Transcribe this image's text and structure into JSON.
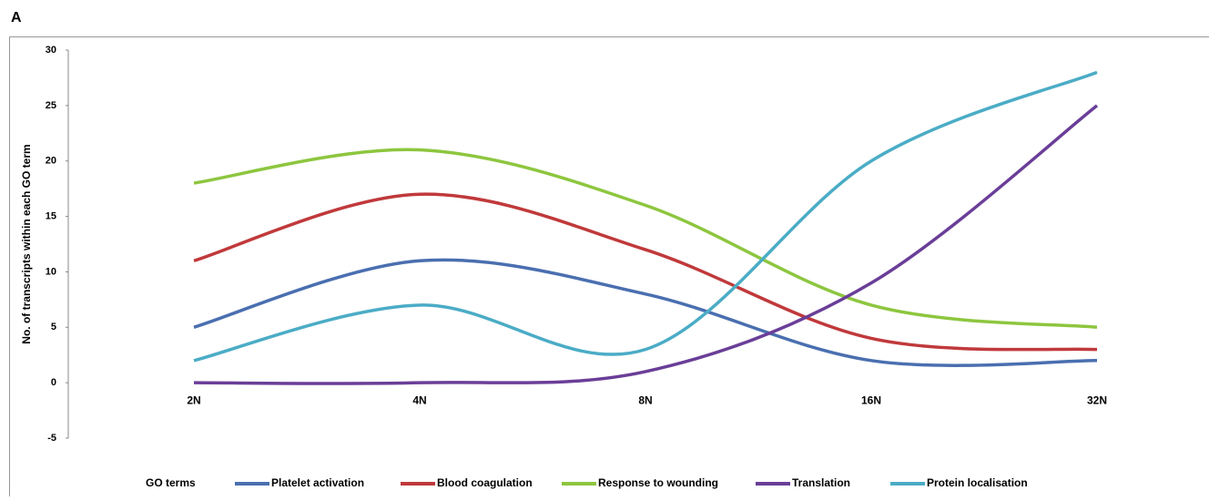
{
  "chart_data": {
    "type": "line",
    "panel_label": "A",
    "y_label": "No. of transcripts within each GO term",
    "categories": [
      "2N",
      "4N",
      "8N",
      "16N",
      "32N"
    ],
    "series": [
      {
        "name": "Platelet activation",
        "color": "#4a6fb0",
        "values": [
          5,
          11,
          8,
          2,
          2
        ]
      },
      {
        "name": "Blood coagulation",
        "color": "#c0393b",
        "values": [
          11,
          17,
          12,
          4,
          3
        ]
      },
      {
        "name": "Response to wounding",
        "color": "#8dc63f",
        "values": [
          18,
          21,
          16,
          7,
          5
        ]
      },
      {
        "name": "Translation",
        "color": "#6a3e98",
        "values": [
          0,
          0,
          1,
          9,
          25
        ]
      },
      {
        "name": "Protein localisation",
        "color": "#4bacc6",
        "values": [
          2,
          7,
          3,
          20,
          28
        ]
      }
    ],
    "legend_title": "GO terms",
    "ylim": [
      -5,
      30
    ],
    "yticks": [
      -5,
      0,
      5,
      10,
      15,
      20,
      25,
      30
    ],
    "smooth": true
  }
}
